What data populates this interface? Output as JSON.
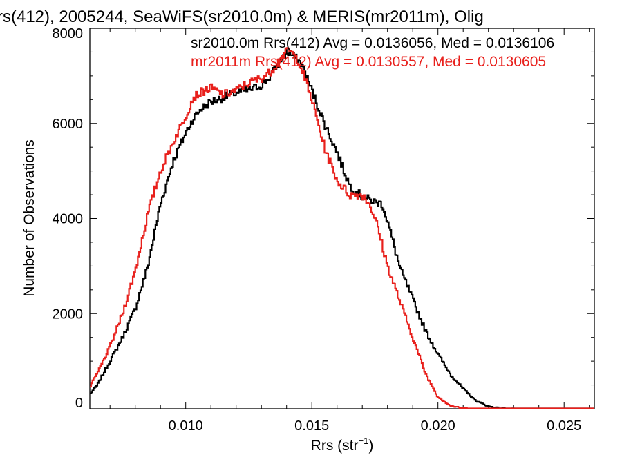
{
  "chart_data": {
    "type": "line",
    "title": "rs(412), 2005244, SeaWiFS(sr2010.0m) & MERIS(mr2011m), Olig",
    "xlabel": "Rrs (str",
    "xlabel_sup": "−1",
    "xlabel_close": ")",
    "ylabel": "Number of Observations",
    "xlim": [
      0.0062,
      0.0262
    ],
    "ylim": [
      0,
      8000
    ],
    "xticks": [
      0.01,
      0.015,
      0.02,
      0.025
    ],
    "xtick_labels": [
      "0.010",
      "0.015",
      "0.020",
      "0.025"
    ],
    "yticks": [
      0,
      2000,
      4000,
      6000,
      8000
    ],
    "ytick_labels": [
      "0",
      "2000",
      "4000",
      "6000",
      "8000"
    ],
    "legend": [
      "sr2010.0m Rrs(412) Avg = 0.0136056, Med = 0.0136106",
      "mr2011m Rrs(412) Avg = 0.0130557, Med = 0.0130605"
    ],
    "series": [
      {
        "color": "#000000",
        "x": [
          0.0062,
          0.0065,
          0.007,
          0.0075,
          0.008,
          0.0085,
          0.009,
          0.0095,
          0.01,
          0.0103,
          0.0106,
          0.011,
          0.0115,
          0.012,
          0.0125,
          0.013,
          0.0133,
          0.0136,
          0.014,
          0.0143,
          0.0146,
          0.015,
          0.0155,
          0.016,
          0.0165,
          0.017,
          0.0175,
          0.0178,
          0.018,
          0.0185,
          0.019,
          0.0195,
          0.02,
          0.0205,
          0.021,
          0.0215,
          0.022,
          0.0225,
          0.023,
          0.024,
          0.025,
          0.0262
        ],
        "y": [
          300,
          500,
          1000,
          1500,
          2100,
          3000,
          4300,
          5200,
          5800,
          6100,
          6300,
          6450,
          6550,
          6650,
          6700,
          6800,
          6950,
          7200,
          7500,
          7400,
          7250,
          6700,
          6000,
          5400,
          4700,
          4450,
          4350,
          4300,
          3950,
          2950,
          2300,
          1650,
          1150,
          720,
          420,
          170,
          50,
          10,
          0,
          0,
          0,
          0
        ]
      },
      {
        "color": "#e8201c",
        "x": [
          0.0062,
          0.0065,
          0.007,
          0.0075,
          0.008,
          0.0085,
          0.009,
          0.0095,
          0.01,
          0.0103,
          0.0106,
          0.0108,
          0.011,
          0.0115,
          0.012,
          0.0125,
          0.013,
          0.0134,
          0.0138,
          0.0141,
          0.0145,
          0.015,
          0.0155,
          0.016,
          0.0165,
          0.017,
          0.0173,
          0.0176,
          0.018,
          0.0185,
          0.019,
          0.0195,
          0.02,
          0.0205,
          0.021,
          0.0215,
          0.022,
          0.023,
          0.024,
          0.0262
        ],
        "y": [
          450,
          750,
          1300,
          2000,
          2900,
          4100,
          5000,
          5600,
          6150,
          6550,
          6650,
          6700,
          6750,
          6600,
          6700,
          6850,
          6950,
          7100,
          7400,
          7550,
          7300,
          6500,
          5500,
          4800,
          4500,
          4500,
          4300,
          3850,
          3000,
          2250,
          1500,
          750,
          250,
          60,
          10,
          0,
          0,
          0,
          0,
          0
        ]
      }
    ]
  }
}
